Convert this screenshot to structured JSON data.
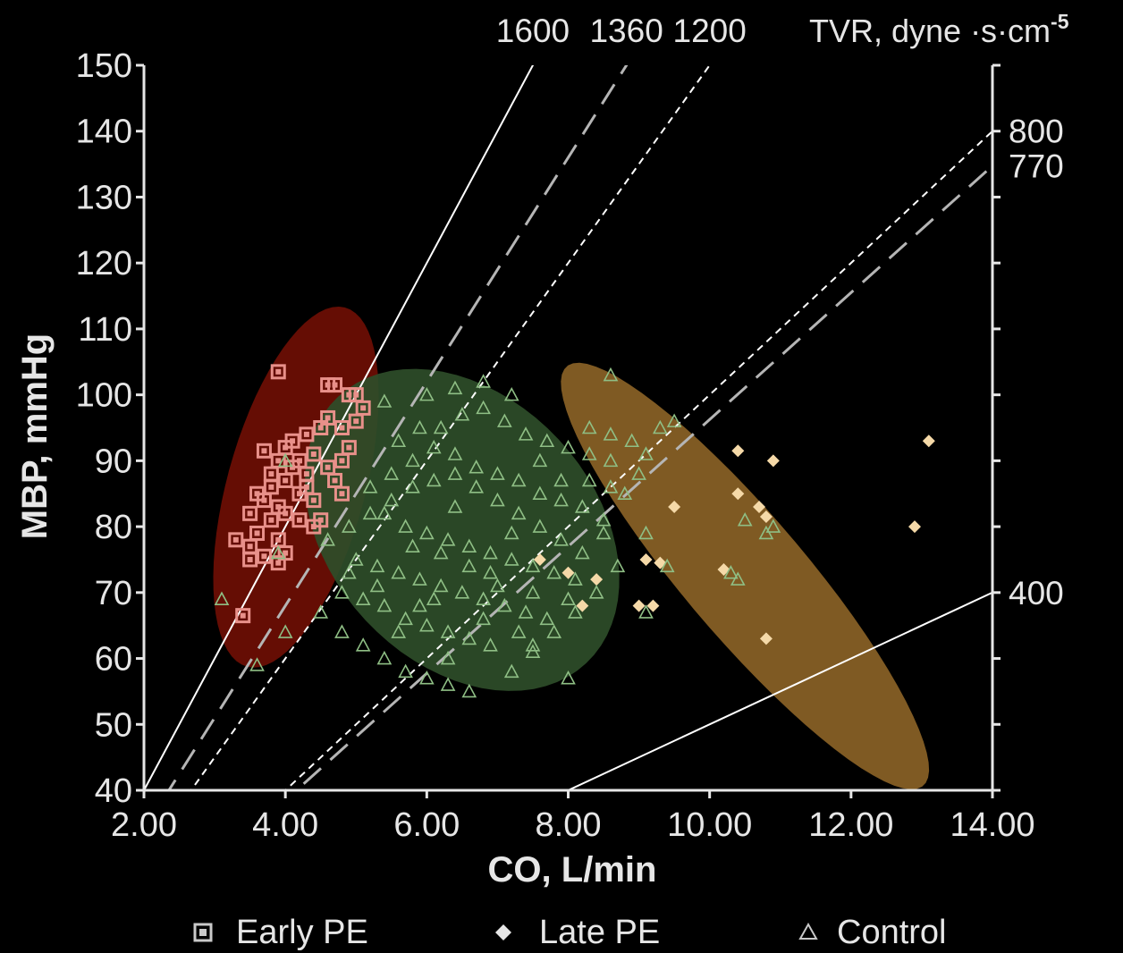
{
  "chart_data": {
    "type": "scatter",
    "xlabel": "CO, L/min",
    "ylabel": "MBP, mmHg",
    "xlim": [
      2,
      14
    ],
    "ylim": [
      40,
      150
    ],
    "x_ticks": [
      "2.00",
      "4.00",
      "6.00",
      "8.00",
      "10.00",
      "12.00",
      "14.00"
    ],
    "y_ticks": [
      "40",
      "50",
      "60",
      "70",
      "80",
      "90",
      "100",
      "110",
      "120",
      "130",
      "140",
      "150"
    ],
    "tvr_header": "TVR, dyne ·s·cm",
    "tvr_exponent": "-5",
    "tvr_lines": [
      {
        "value": 1600,
        "label": "1600",
        "style": "solid"
      },
      {
        "value": 1360,
        "label": "1360",
        "style": "long-dash"
      },
      {
        "value": 1200,
        "label": "1200",
        "style": "short-dash"
      },
      {
        "value": 800,
        "label": "800",
        "style": "short-dash"
      },
      {
        "value": 770,
        "label": "770",
        "style": "long-dash"
      },
      {
        "value": 400,
        "label": "400",
        "style": "solid"
      }
    ],
    "ellipses": [
      {
        "group": "Early PE",
        "cx": 4.15,
        "cy": 86,
        "rx": 0.95,
        "ry": 29,
        "rotation": -0.38,
        "color": "#6e0e04"
      },
      {
        "group": "Control",
        "cx": 6.5,
        "cy": 79.5,
        "rx": 2.35,
        "ry": 22,
        "rotation": -0.45,
        "color": "#2e4d29"
      },
      {
        "group": "Late PE",
        "cx": 10.5,
        "cy": 72.5,
        "rx": 3.4,
        "ry": 10.5,
        "rotation": -0.72,
        "color": "#8a6226"
      }
    ],
    "series": [
      {
        "name": "Early PE",
        "marker": "square",
        "color": "#e8908a",
        "points": [
          [
            3.9,
            103.5
          ],
          [
            4.6,
            101.5
          ],
          [
            4.7,
            101.5
          ],
          [
            4.9,
            100
          ],
          [
            5.0,
            100
          ],
          [
            5.1,
            98
          ],
          [
            5.0,
            96
          ],
          [
            4.6,
            96.5
          ],
          [
            4.5,
            95
          ],
          [
            4.8,
            95
          ],
          [
            4.3,
            94
          ],
          [
            4.1,
            93
          ],
          [
            4.0,
            92
          ],
          [
            4.4,
            91
          ],
          [
            4.2,
            90
          ],
          [
            4.6,
            89
          ],
          [
            4.8,
            90
          ],
          [
            3.7,
            91.5
          ],
          [
            3.9,
            90
          ],
          [
            4.1,
            89
          ],
          [
            3.8,
            88
          ],
          [
            4.0,
            87
          ],
          [
            4.3,
            86
          ],
          [
            3.8,
            86
          ],
          [
            4.2,
            85
          ],
          [
            3.6,
            85
          ],
          [
            4.8,
            85
          ],
          [
            4.4,
            84
          ],
          [
            3.7,
            84
          ],
          [
            3.9,
            83
          ],
          [
            3.5,
            82
          ],
          [
            4.0,
            82
          ],
          [
            4.2,
            81
          ],
          [
            3.8,
            81
          ],
          [
            4.4,
            80
          ],
          [
            3.6,
            79
          ],
          [
            3.9,
            78
          ],
          [
            3.3,
            78
          ],
          [
            3.5,
            77
          ],
          [
            4.0,
            76
          ],
          [
            3.7,
            75.5
          ],
          [
            3.5,
            75
          ],
          [
            3.9,
            74.5
          ],
          [
            3.4,
            66.5
          ],
          [
            4.5,
            81
          ],
          [
            4.7,
            87
          ],
          [
            4.3,
            88
          ],
          [
            4.9,
            92
          ]
        ]
      },
      {
        "name": "Late PE",
        "marker": "diamond",
        "color": "#f5d9a8",
        "points": [
          [
            13.1,
            93
          ],
          [
            10.4,
            91.5
          ],
          [
            10.9,
            90
          ],
          [
            10.4,
            85
          ],
          [
            9.5,
            83
          ],
          [
            10.7,
            83
          ],
          [
            10.8,
            81.5
          ],
          [
            12.9,
            80
          ],
          [
            7.6,
            75
          ],
          [
            9.1,
            75
          ],
          [
            9.3,
            74.5
          ],
          [
            10.2,
            73.5
          ],
          [
            9.2,
            68
          ],
          [
            9.0,
            68
          ],
          [
            10.8,
            63
          ],
          [
            8.0,
            73
          ],
          [
            8.4,
            72
          ],
          [
            8.2,
            68
          ]
        ]
      },
      {
        "name": "Control",
        "marker": "triangle",
        "color": "#8fbf85",
        "points": [
          [
            5.2,
            86
          ],
          [
            5.5,
            88
          ],
          [
            5.8,
            90
          ],
          [
            6.1,
            92
          ],
          [
            6.4,
            91
          ],
          [
            6.7,
            89
          ],
          [
            7.0,
            88
          ],
          [
            7.3,
            87
          ],
          [
            7.6,
            85
          ],
          [
            7.9,
            84
          ],
          [
            8.2,
            83
          ],
          [
            8.5,
            81
          ],
          [
            5.4,
            82
          ],
          [
            5.7,
            80
          ],
          [
            6.0,
            79
          ],
          [
            6.3,
            78
          ],
          [
            6.6,
            77
          ],
          [
            6.9,
            76
          ],
          [
            7.2,
            75
          ],
          [
            7.5,
            74
          ],
          [
            7.8,
            73
          ],
          [
            8.1,
            72
          ],
          [
            5.0,
            75
          ],
          [
            5.3,
            74
          ],
          [
            5.6,
            73
          ],
          [
            5.9,
            72
          ],
          [
            6.2,
            71
          ],
          [
            6.5,
            70
          ],
          [
            6.8,
            69
          ],
          [
            7.1,
            68
          ],
          [
            7.4,
            67
          ],
          [
            7.7,
            66
          ],
          [
            4.8,
            70
          ],
          [
            5.1,
            69
          ],
          [
            5.4,
            68
          ],
          [
            5.7,
            66
          ],
          [
            6.0,
            65
          ],
          [
            6.3,
            64
          ],
          [
            6.6,
            63
          ],
          [
            6.9,
            62
          ],
          [
            4.5,
            67
          ],
          [
            4.8,
            64
          ],
          [
            5.1,
            62
          ],
          [
            5.4,
            60
          ],
          [
            5.7,
            58
          ],
          [
            6.0,
            57
          ],
          [
            6.3,
            56
          ],
          [
            6.6,
            55
          ],
          [
            4.6,
            78
          ],
          [
            4.9,
            80
          ],
          [
            5.2,
            82
          ],
          [
            5.5,
            84
          ],
          [
            5.8,
            86
          ],
          [
            6.1,
            87
          ],
          [
            6.4,
            88
          ],
          [
            6.7,
            86
          ],
          [
            7.0,
            84
          ],
          [
            7.3,
            82
          ],
          [
            7.6,
            80
          ],
          [
            7.9,
            78
          ],
          [
            8.2,
            76
          ],
          [
            6.2,
            95
          ],
          [
            6.5,
            97
          ],
          [
            6.8,
            98
          ],
          [
            7.1,
            96
          ],
          [
            7.4,
            94
          ],
          [
            7.7,
            93
          ],
          [
            8.0,
            92
          ],
          [
            8.3,
            91
          ],
          [
            8.6,
            90
          ],
          [
            6.0,
            100
          ],
          [
            6.4,
            101
          ],
          [
            6.8,
            102
          ],
          [
            7.2,
            100
          ],
          [
            5.6,
            93
          ],
          [
            5.9,
            95
          ],
          [
            8.3,
            95
          ],
          [
            8.6,
            94
          ],
          [
            8.9,
            93
          ],
          [
            9.1,
            91
          ],
          [
            9.3,
            95
          ],
          [
            9.5,
            96
          ],
          [
            9.0,
            88
          ],
          [
            8.8,
            85
          ],
          [
            8.5,
            79
          ],
          [
            8.7,
            74
          ],
          [
            8.4,
            70
          ],
          [
            8.1,
            67
          ],
          [
            7.8,
            64
          ],
          [
            7.5,
            61
          ],
          [
            7.2,
            58
          ],
          [
            9.1,
            79
          ],
          [
            9.4,
            74
          ],
          [
            10.5,
            81
          ],
          [
            10.9,
            80
          ],
          [
            10.8,
            79
          ],
          [
            10.3,
            73
          ],
          [
            10.4,
            72
          ],
          [
            9.1,
            67
          ],
          [
            8.0,
            57
          ],
          [
            7.5,
            62
          ],
          [
            8.6,
            103
          ],
          [
            4.0,
            64
          ],
          [
            3.6,
            59
          ],
          [
            3.1,
            69
          ],
          [
            3.9,
            76
          ],
          [
            4.0,
            90
          ],
          [
            5.4,
            99
          ],
          [
            6.1,
            69
          ],
          [
            6.9,
            73
          ],
          [
            7.2,
            79
          ],
          [
            6.4,
            83
          ],
          [
            5.8,
            77
          ],
          [
            5.3,
            71
          ],
          [
            4.9,
            73
          ],
          [
            7.5,
            70
          ],
          [
            7.0,
            71
          ],
          [
            6.6,
            74
          ],
          [
            6.2,
            76
          ],
          [
            5.9,
            68
          ],
          [
            5.6,
            64
          ],
          [
            6.3,
            60
          ],
          [
            6.8,
            66
          ],
          [
            7.3,
            64
          ],
          [
            8.0,
            69
          ],
          [
            7.9,
            87
          ],
          [
            7.6,
            90
          ],
          [
            8.3,
            87
          ],
          [
            8.6,
            86
          ]
        ]
      }
    ],
    "legend": {
      "position": "bottom",
      "items": [
        {
          "label": "Early PE",
          "marker": "square",
          "color": "#c9c9c9"
        },
        {
          "label": "Late PE",
          "marker": "diamond",
          "color": "#e6e6e6"
        },
        {
          "label": "Control",
          "marker": "triangle",
          "color": "#c9c9c9"
        }
      ]
    },
    "colors": {
      "background": "#000000",
      "axis": "#e6e6e6",
      "line": "#ffffff",
      "dash": "#b5b5b5"
    }
  }
}
